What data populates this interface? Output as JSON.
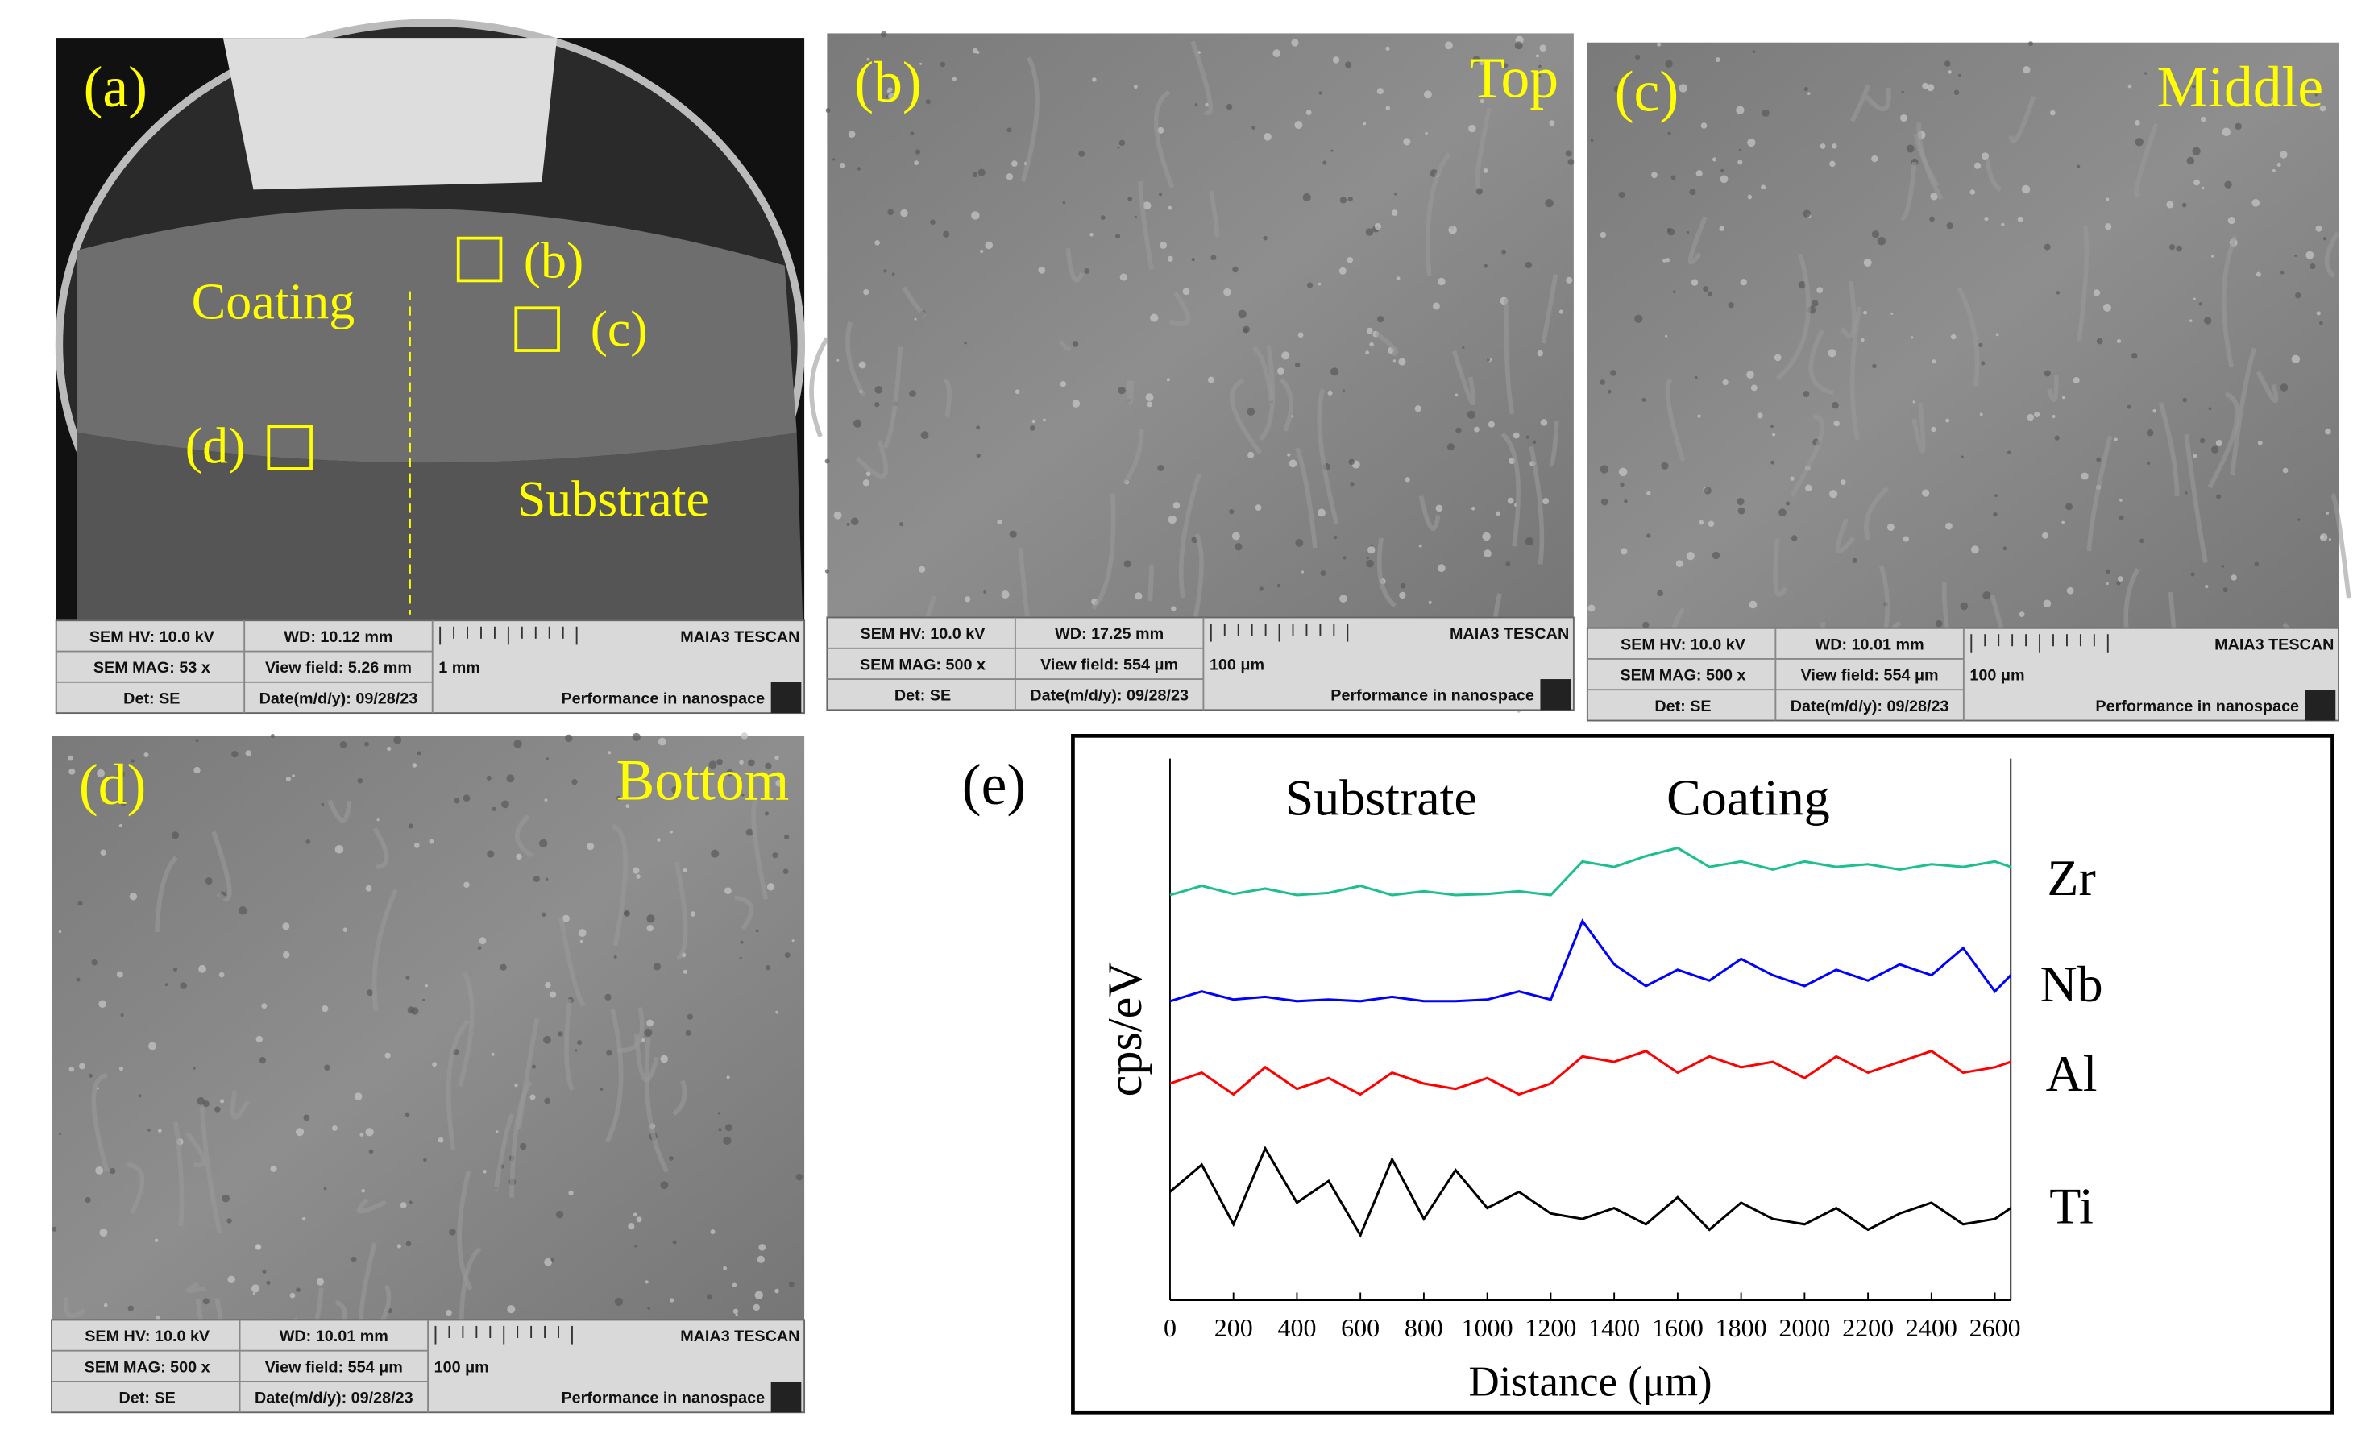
{
  "panels": [
    {
      "label": "(a)",
      "annotations": [
        "(b)",
        "(c)",
        "(d)",
        "Coating",
        "Substrate"
      ],
      "info_bar": [
        "SEM HV: 10.0 kV",
        "WD: 10.12 mm",
        "MAIA3 TESCAN",
        "SEM MAG: 53 x",
        "View field: 5.26 mm",
        "1 mm",
        "Det: SE",
        "Date(m/d/y): 09/28/23",
        "Performance in nanospace"
      ]
    },
    {
      "label": "(b)",
      "caption": "Top",
      "info_bar": [
        "SEM HV: 10.0 kV",
        "WD: 17.25 mm",
        "MAIA3 TESCAN",
        "SEM MAG: 500 x",
        "View field: 554 μm",
        "100 μm",
        "Det: SE",
        "Date(m/d/y): 09/28/23",
        "Performance in nanospace"
      ]
    },
    {
      "label": "(c)",
      "caption": "Middle",
      "info_bar": [
        "SEM HV: 10.0 kV",
        "WD: 10.01 mm",
        "MAIA3 TESCAN",
        "SEM MAG: 500 x",
        "View field: 554 μm",
        "100 μm",
        "Det: SE",
        "Date(m/d/y): 09/28/23",
        "Performance in nanospace"
      ]
    },
    {
      "label": "(d)",
      "caption": "Bottom",
      "info_bar": [
        "SEM HV: 10.0 kV",
        "WD: 10.01 mm",
        "MAIA3 TESCAN",
        "SEM MAG: 500 x",
        "View field: 554 μm",
        "100 μm",
        "Det: SE",
        "Date(m/d/y): 09/28/23",
        "Performance in nanospace"
      ]
    }
  ],
  "chart_data": {
    "type": "line",
    "panel_label": "(e)",
    "annotations": [
      "Substrate",
      "Coating"
    ],
    "x_label": "Distance (μm)",
    "y_label": "cps/eV",
    "x": [
      0,
      100,
      200,
      300,
      400,
      500,
      600,
      700,
      800,
      900,
      1000,
      1100,
      1200,
      1300,
      1400,
      1500,
      1600,
      1700,
      1800,
      1900,
      2000,
      2100,
      2200,
      2300,
      2400,
      2500,
      2600,
      2650
    ],
    "xlim": [
      0,
      2650
    ],
    "xticks": [
      0,
      200,
      400,
      600,
      800,
      1000,
      1200,
      1400,
      1600,
      1800,
      2000,
      2200,
      2400,
      2600
    ],
    "ylim": [
      0,
      100
    ],
    "series": [
      {
        "name": "Zr",
        "color": "#1dbf8e",
        "values": [
          74.8,
          76.5,
          75,
          76,
          74.8,
          75.2,
          76.5,
          74.8,
          75.5,
          74.8,
          75,
          75.5,
          74.8,
          81,
          80,
          82,
          83.5,
          80,
          81,
          79.5,
          81,
          80,
          80.5,
          79.5,
          80.5,
          80,
          81,
          80
        ]
      },
      {
        "name": "Nb",
        "color": "#0000ff",
        "values": [
          55.2,
          57,
          55.5,
          56,
          55.2,
          55.5,
          55.2,
          56,
          55.2,
          55.2,
          55.5,
          57,
          55.5,
          70,
          62,
          58,
          61,
          59,
          63,
          60,
          58,
          61,
          59,
          62,
          60,
          65,
          57,
          60
        ]
      },
      {
        "name": "Al",
        "color": "#ff0000",
        "values": [
          40,
          42,
          38,
          43,
          39,
          41,
          38,
          42,
          40,
          39,
          41,
          38,
          40,
          45,
          44,
          46,
          42,
          45,
          43,
          44,
          41,
          45,
          42,
          44,
          46,
          42,
          43,
          44
        ]
      },
      {
        "name": "Ti",
        "color": "#000000",
        "values": [
          20,
          25,
          14,
          28,
          18,
          22,
          12,
          26,
          15,
          24,
          17,
          20,
          16,
          15,
          17,
          14,
          19,
          13,
          18,
          15,
          14,
          17,
          13,
          16,
          18,
          14,
          15,
          17
        ]
      }
    ]
  }
}
